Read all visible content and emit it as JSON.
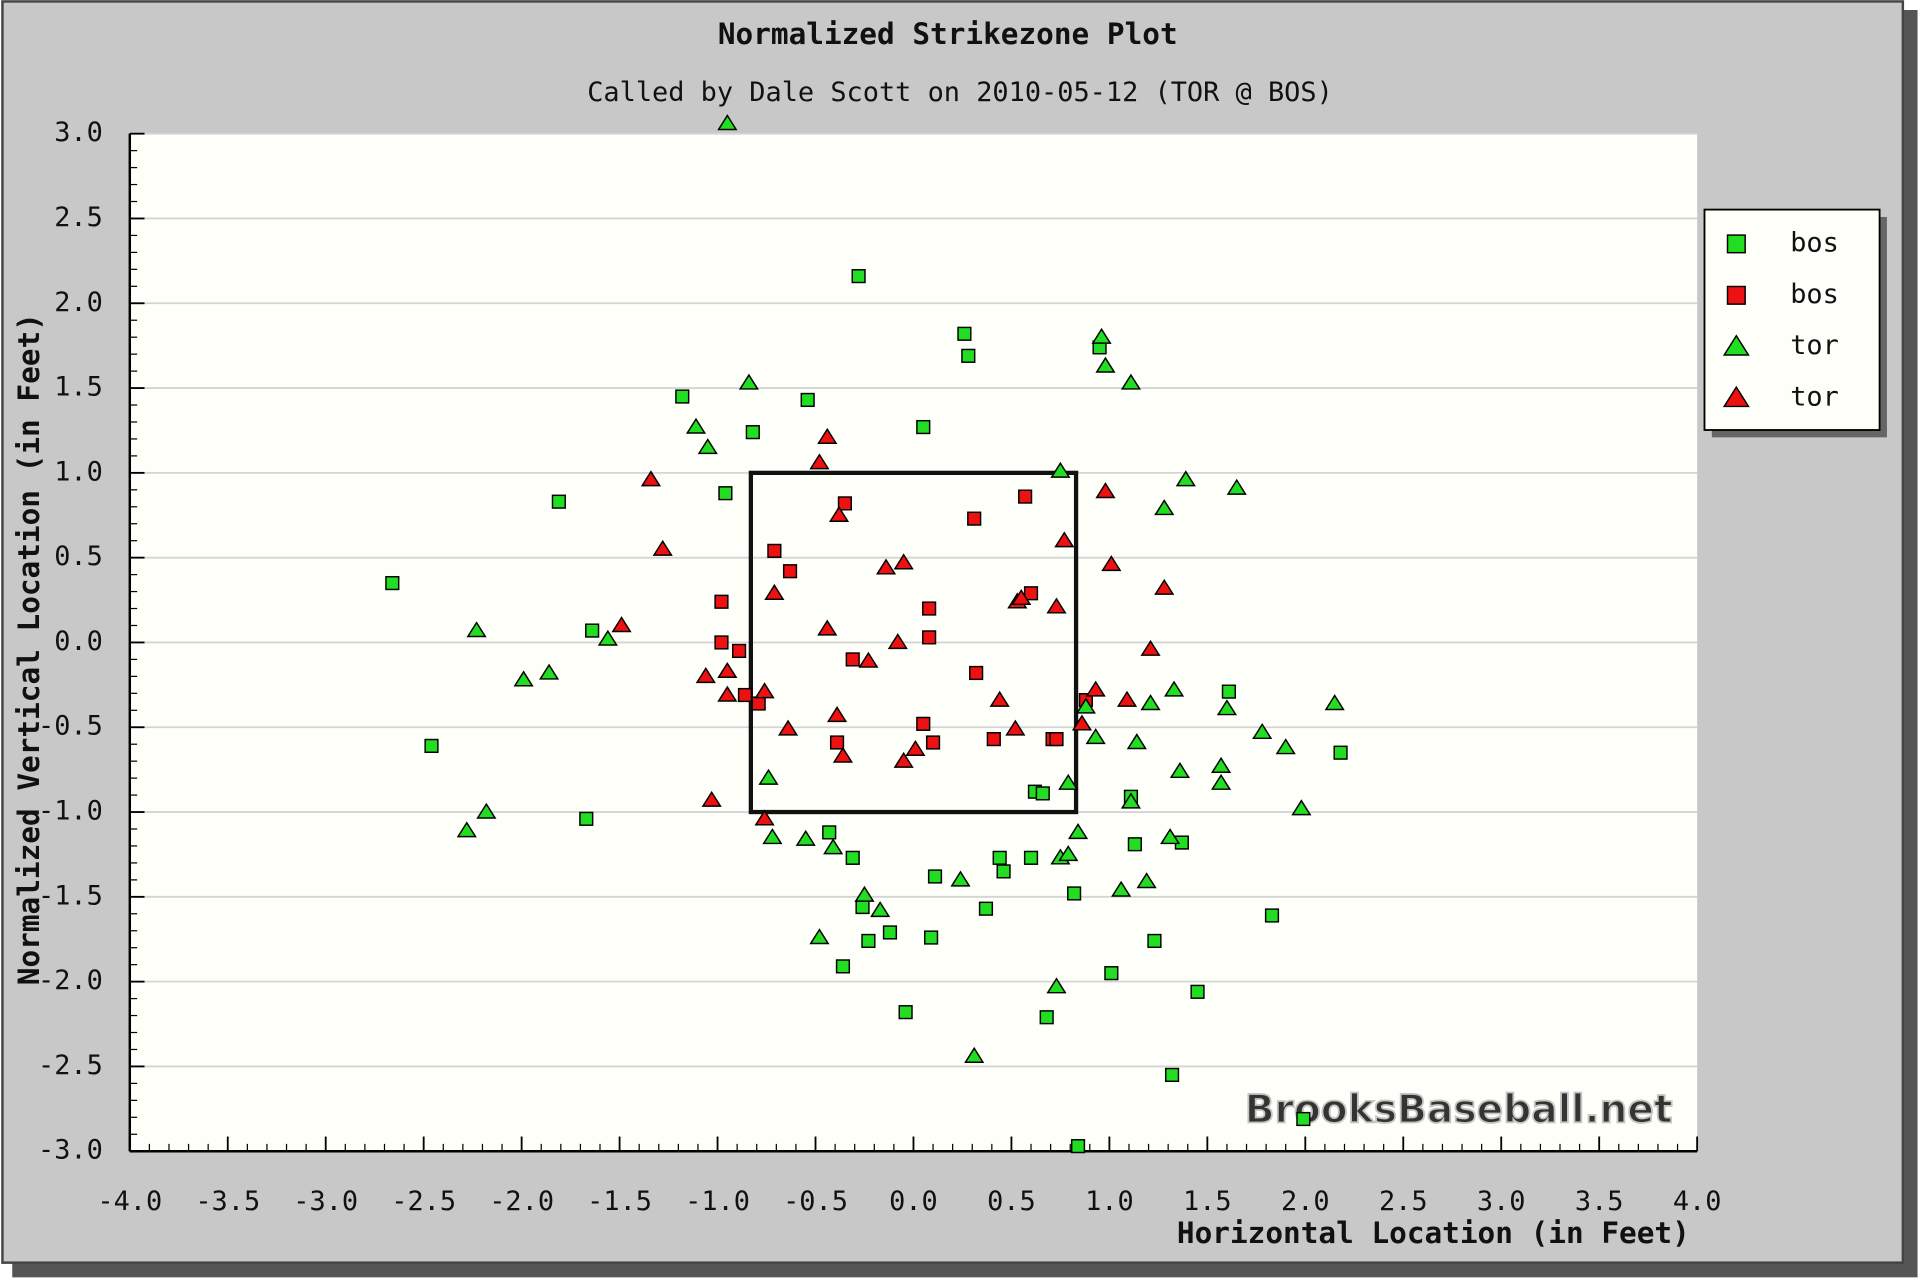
{
  "chart_data": {
    "type": "scatter",
    "title": "Normalized Strikezone Plot",
    "subtitle": "Called by Dale Scott on 2010-05-12 (TOR @ BOS)",
    "x_label": "Horizontal Location (in Feet)",
    "y_label": "Normalized Vertical Location (in Feet)",
    "watermark": "BrooksBaseball.net",
    "xlim": [
      -4,
      4
    ],
    "ylim": [
      -3,
      3
    ],
    "xticks": [
      {
        "value": -4,
        "label": "-4.0"
      },
      -3.5,
      {
        "value": -3,
        "label": "-3.0"
      },
      -2.5,
      {
        "value": -2,
        "label": "-2.0"
      },
      -1.5,
      {
        "value": -1,
        "label": "-1.0"
      },
      -0.5,
      {
        "value": 0,
        "label": "0.0"
      },
      0.5,
      {
        "value": 1,
        "label": "1.0"
      },
      1.5,
      {
        "value": 2,
        "label": "2.0"
      },
      2.5,
      {
        "value": 3,
        "label": "3.0"
      },
      3.5,
      {
        "value": 4,
        "label": "4.0"
      }
    ],
    "yticks": [
      {
        "value": 3,
        "label": "3.0"
      },
      2.5,
      {
        "value": 2,
        "label": "2.0"
      },
      1.5,
      {
        "value": 1,
        "label": "1.0"
      },
      0.5,
      {
        "value": 0,
        "label": "0.0"
      },
      -0.5,
      {
        "value": -1,
        "label": "-1.0"
      },
      -1.5,
      {
        "value": -2,
        "label": "-2.0"
      },
      -2.5,
      {
        "value": -3,
        "label": "-3.0"
      }
    ],
    "grid": true,
    "legend": "right",
    "strike_zone": {
      "x": [
        -0.83,
        0.83
      ],
      "y": [
        -1,
        1
      ]
    },
    "series": [
      {
        "name": "bos",
        "color": "#22dd22",
        "marker": "square",
        "x": [
          -2.66,
          -2.46,
          -1.81,
          -1.67,
          -1.64,
          -1.18,
          -0.96,
          -0.82,
          -0.54,
          -0.28,
          0.05,
          0.26,
          0.28,
          -0.43,
          -0.31,
          -0.26,
          -0.23,
          -0.36,
          -0.12,
          -0.04,
          0.11,
          0.09,
          0.37,
          0.44,
          0.46,
          0.6,
          0.62,
          0.66,
          0.68,
          0.82,
          0.84,
          0.95,
          1.01,
          1.11,
          1.13,
          1.23,
          1.32,
          1.37,
          1.45,
          1.61,
          1.83,
          1.99,
          2.18
        ],
        "values": [
          0.35,
          -0.61,
          0.83,
          -1.04,
          0.07,
          1.45,
          0.88,
          1.24,
          1.43,
          2.16,
          1.27,
          1.82,
          1.69,
          -1.12,
          -1.27,
          -1.56,
          -1.76,
          -1.91,
          -1.71,
          -2.18,
          -1.38,
          -1.74,
          -1.57,
          -1.27,
          -1.35,
          -1.27,
          -0.88,
          -0.89,
          -2.21,
          -1.48,
          -2.97,
          1.74,
          -1.95,
          -0.91,
          -1.19,
          -1.76,
          -2.55,
          -1.18,
          -2.06,
          -0.29,
          -1.61,
          -2.81,
          -0.65
        ]
      },
      {
        "name": "bos",
        "color": "#ee1111",
        "marker": "square",
        "x": [
          -0.98,
          -0.98,
          -0.89,
          -0.86,
          -0.79,
          -0.71,
          -0.63,
          -0.35,
          -0.39,
          -0.31,
          0.08,
          0.08,
          0.05,
          0.1,
          0.31,
          0.32,
          0.41,
          0.57,
          0.6,
          0.71,
          0.73,
          0.88
        ],
        "values": [
          0.24,
          0.0,
          -0.05,
          -0.31,
          -0.36,
          0.54,
          0.42,
          0.82,
          -0.59,
          -0.1,
          0.2,
          0.03,
          -0.48,
          -0.59,
          0.73,
          -0.18,
          -0.57,
          0.86,
          0.29,
          -0.57,
          -0.57,
          -0.34
        ]
      },
      {
        "name": "tor",
        "color": "#22dd22",
        "marker": "triangle",
        "x": [
          -0.95,
          -2.23,
          -1.99,
          -1.86,
          -2.28,
          -2.18,
          -1.56,
          -1.11,
          -1.05,
          -0.84,
          -0.74,
          -0.72,
          -0.55,
          -0.48,
          -0.41,
          -0.25,
          -0.17,
          0.24,
          0.31,
          0.73,
          0.75,
          0.79,
          0.75,
          0.79,
          0.84,
          0.88,
          0.93,
          0.96,
          0.98,
          1.11,
          1.06,
          1.11,
          1.14,
          1.19,
          1.21,
          1.28,
          1.31,
          1.33,
          1.36,
          1.39,
          1.57,
          1.57,
          1.6,
          1.65,
          1.78,
          1.9,
          1.98,
          2.15
        ],
        "values": [
          3.06,
          0.07,
          -0.22,
          -0.18,
          -1.11,
          -1.0,
          0.02,
          1.27,
          1.15,
          1.53,
          -0.8,
          -1.15,
          -1.16,
          -1.74,
          -1.21,
          -1.49,
          -1.58,
          -1.4,
          -2.44,
          -2.03,
          -1.27,
          -1.25,
          1.01,
          -0.83,
          -1.12,
          -0.38,
          -0.56,
          1.8,
          1.63,
          1.53,
          -1.46,
          -0.94,
          -0.59,
          -1.41,
          -0.36,
          0.79,
          -1.15,
          -0.28,
          -0.76,
          0.96,
          -0.73,
          -0.83,
          -0.39,
          0.91,
          -0.53,
          -0.62,
          -0.98,
          -0.36
        ]
      },
      {
        "name": "tor",
        "color": "#ee1111",
        "marker": "triangle",
        "x": [
          -1.34,
          -1.28,
          -1.49,
          -1.06,
          -1.03,
          -0.95,
          -0.95,
          -0.76,
          -0.76,
          -0.71,
          -0.64,
          -0.48,
          -0.44,
          -0.44,
          -0.39,
          -0.38,
          -0.36,
          -0.23,
          -0.14,
          -0.05,
          -0.08,
          -0.05,
          0.01,
          0.44,
          0.52,
          0.53,
          0.55,
          0.73,
          0.77,
          0.93,
          0.98,
          1.01,
          1.09,
          1.21,
          1.28,
          0.86
        ],
        "values": [
          0.96,
          0.55,
          0.1,
          -0.2,
          -0.93,
          -0.17,
          -0.31,
          -0.29,
          -1.04,
          0.29,
          -0.51,
          1.06,
          1.21,
          0.08,
          -0.43,
          0.75,
          -0.67,
          -0.11,
          0.44,
          0.47,
          0.0,
          -0.7,
          -0.63,
          -0.34,
          -0.51,
          0.24,
          0.26,
          0.21,
          0.6,
          -0.28,
          0.89,
          0.46,
          -0.34,
          -0.04,
          0.32,
          -0.48
        ]
      }
    ]
  }
}
